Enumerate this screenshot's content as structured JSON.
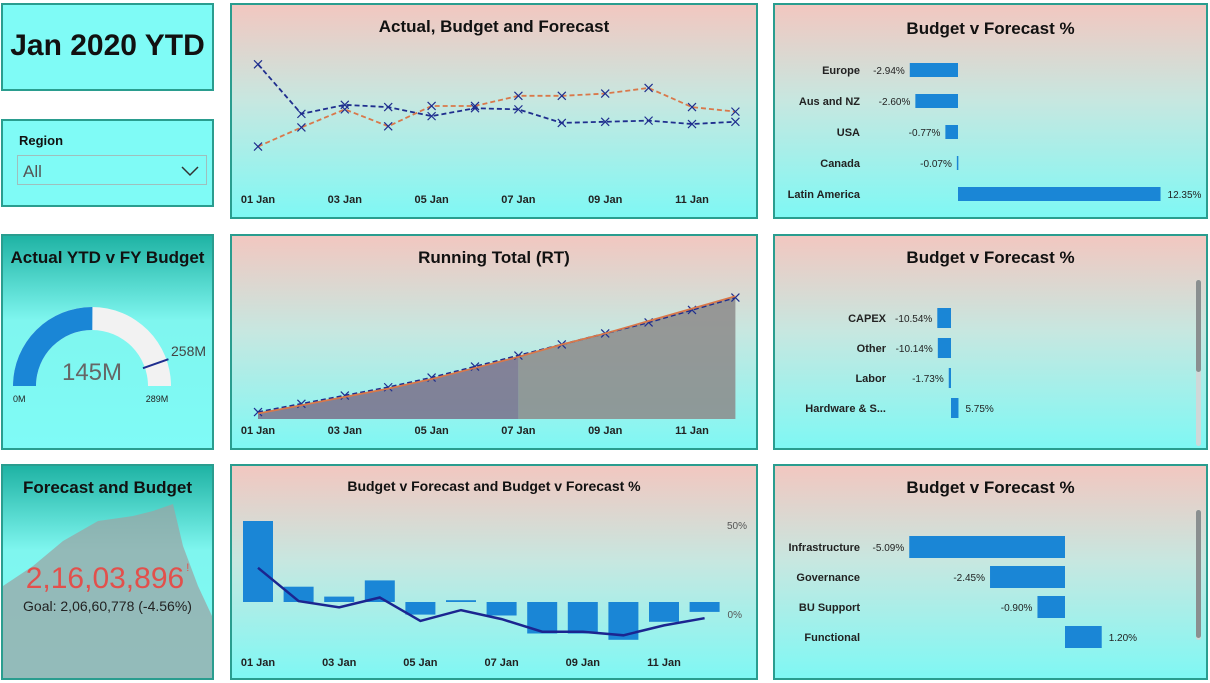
{
  "header": {
    "title": "Jan 2020 YTD"
  },
  "region_slicer": {
    "label": "Region",
    "selected": "All",
    "icon": "chevron-down-icon"
  },
  "gauge": {
    "title": "Actual YTD v FY Budget",
    "value": 145,
    "value_label": "145M",
    "min": 0,
    "min_label": "0M",
    "max": 289,
    "max_label": "289M",
    "target": 258,
    "target_label": "258M",
    "fill_color": "#1a86d6",
    "track_color": "#f2f2f2"
  },
  "kpi": {
    "title": "Forecast and Budget",
    "value": "2,16,03,896",
    "indicator": "!",
    "goal": "Goal: 2,06,60,778 (-4.56%)",
    "value_color": "#e2504c"
  },
  "colors": {
    "dark_blue": "#1f2e8e",
    "orange": "#d9784a",
    "bar_blue": "#1a86d6"
  },
  "chart_data": [
    {
      "id": "abf",
      "type": "line",
      "title": "Actual, Budget and Forecast",
      "x_labels": [
        "01 Jan",
        "03 Jan",
        "05 Jan",
        "07 Jan",
        "09 Jan",
        "11 Jan"
      ],
      "series": [
        {
          "color": "#1f2e8e",
          "values": [
            100,
            56,
            64,
            62,
            54,
            61,
            60,
            48,
            49,
            50,
            47,
            49
          ]
        },
        {
          "color": "#d9784a",
          "values": [
            27,
            44,
            60,
            45,
            63,
            63,
            72,
            72,
            74,
            79,
            62,
            58
          ]
        }
      ],
      "ylim": [
        0,
        110
      ]
    },
    {
      "id": "rt",
      "type": "area",
      "title": "Running Total (RT)",
      "x_labels": [
        "01 Jan",
        "03 Jan",
        "05 Jan",
        "07 Jan",
        "09 Jan",
        "11 Jan"
      ],
      "series": [
        {
          "color": "#1f2e8e",
          "values": [
            5,
            11,
            17,
            23,
            30,
            38,
            46,
            54,
            62,
            70,
            79,
            88
          ]
        },
        {
          "color": "#d9784a",
          "values": [
            4,
            10,
            16,
            22,
            29,
            37,
            45,
            54,
            62,
            71,
            80,
            89
          ]
        }
      ],
      "ylim": [
        0,
        100
      ]
    },
    {
      "id": "bvf",
      "type": "bar",
      "title": "Budget v Forecast and Budget v Forecast %",
      "x_labels": [
        "01 Jan",
        "03 Jan",
        "05 Jan",
        "07 Jan",
        "09 Jan",
        "11 Jan"
      ],
      "bars": [
        90,
        17,
        6,
        24,
        -14,
        2,
        -15,
        -35,
        -35,
        -42,
        -22,
        -11
      ],
      "line": [
        38,
        1,
        -6,
        5,
        -21,
        -9,
        -19,
        -33,
        -33,
        -37,
        -26,
        -18
      ],
      "y_ticks": [
        "50%",
        "0%"
      ],
      "ylim": [
        -45,
        95
      ]
    },
    {
      "id": "region",
      "type": "bar",
      "orientation": "horizontal",
      "title": "Budget v Forecast %",
      "categories": [
        "Europe",
        "Aus and NZ",
        "USA",
        "Canada",
        "Latin America"
      ],
      "values": [
        -2.94,
        -2.6,
        -0.77,
        -0.07,
        12.35
      ],
      "labels": [
        "-2.94%",
        "-2.60%",
        "-0.77%",
        "-0.07%",
        "12.35%"
      ]
    },
    {
      "id": "expense",
      "type": "bar",
      "orientation": "horizontal",
      "title": "Budget v Forecast %",
      "categories": [
        "CAPEX",
        "Other",
        "Labor",
        "Hardware & S..."
      ],
      "values": [
        -10.54,
        -10.14,
        -1.73,
        5.75
      ],
      "labels": [
        "-10.54%",
        "-10.14%",
        "-1.73%",
        "5.75%"
      ]
    },
    {
      "id": "function",
      "type": "bar",
      "orientation": "horizontal",
      "title": "Budget v Forecast %",
      "categories": [
        "Infrastructure",
        "Governance",
        "BU Support",
        "Functional"
      ],
      "values": [
        -5.09,
        -2.45,
        -0.9,
        1.2
      ],
      "labels": [
        "-5.09%",
        "-2.45%",
        "-0.90%",
        "1.20%"
      ]
    }
  ]
}
